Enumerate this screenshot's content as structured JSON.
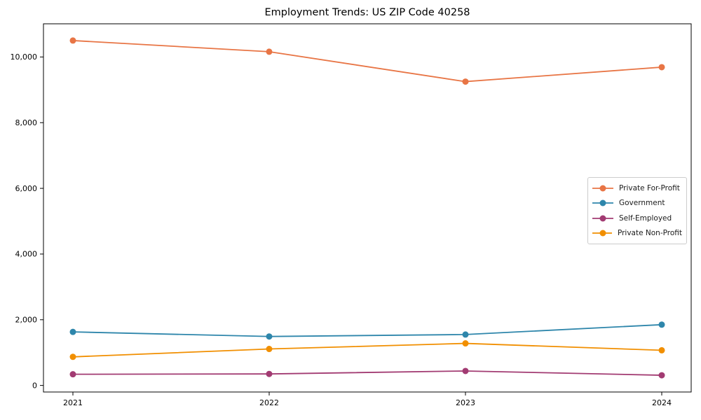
{
  "chart_data": {
    "type": "line",
    "title": "Employment Trends: US ZIP Code 40258",
    "xlabel": "",
    "ylabel": "",
    "categories": [
      "2021",
      "2022",
      "2023",
      "2024"
    ],
    "series": [
      {
        "name": "Private For-Profit",
        "color": "#e87545",
        "values": [
          10500,
          10160,
          9250,
          9690
        ]
      },
      {
        "name": "Government",
        "color": "#2e86ab",
        "values": [
          1630,
          1490,
          1550,
          1850
        ]
      },
      {
        "name": "Self-Employed",
        "color": "#a23b72",
        "values": [
          340,
          350,
          440,
          310
        ]
      },
      {
        "name": "Private Non-Profit",
        "color": "#f18f01",
        "values": [
          870,
          1110,
          1280,
          1070
        ]
      }
    ],
    "yticks": [
      0,
      2000,
      4000,
      6000,
      8000,
      10000
    ],
    "ytick_labels": [
      "0",
      "2,000",
      "4,000",
      "6,000",
      "8,000",
      "10,000"
    ],
    "ylim": [
      -200,
      11010
    ],
    "x_margin_ratio": 0.05,
    "grid": false,
    "legend_position": "center right",
    "marker": "circle",
    "marker_radius": 4.5,
    "line_width": 1.8,
    "axis_color": "#000000",
    "legend_border_color": "#cccccc"
  }
}
